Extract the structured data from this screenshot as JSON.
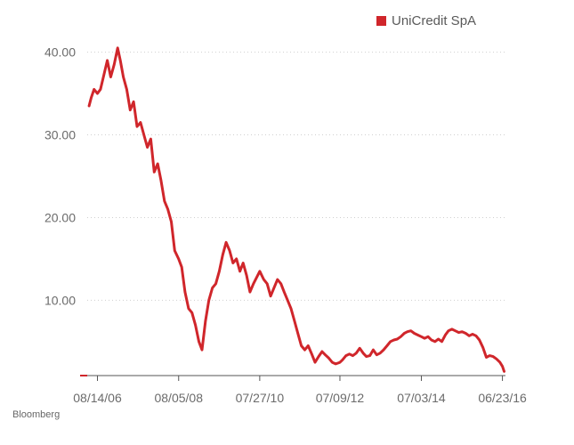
{
  "source": "Bloomberg",
  "colors": {
    "series": "#d0262b",
    "grid": "#cfcfcf",
    "axis": "#555555"
  },
  "chart_data": {
    "type": "line",
    "title": "",
    "xlabel": "",
    "ylabel": "",
    "legend_position": "top-right",
    "grid": true,
    "ylim": [
      1,
      42
    ],
    "xlim": [
      "2006-05-15",
      "2016-07-20"
    ],
    "yticks": [
      {
        "value": 10,
        "label": "10.00"
      },
      {
        "value": 20,
        "label": "20.00"
      },
      {
        "value": 30,
        "label": "30.00"
      },
      {
        "value": 40,
        "label": "40.00"
      }
    ],
    "xticks": [
      {
        "value": "2006-08-14",
        "label": "08/14/06"
      },
      {
        "value": "2008-08-05",
        "label": "08/05/08"
      },
      {
        "value": "2010-07-27",
        "label": "07/27/10"
      },
      {
        "value": "2012-07-09",
        "label": "07/09/12"
      },
      {
        "value": "2014-07-03",
        "label": "07/03/14"
      },
      {
        "value": "2016-06-23",
        "label": "06/23/16"
      }
    ],
    "series": [
      {
        "name": "UniCredit SpA",
        "color": "#d0262b",
        "points": [
          [
            "2006-06-01",
            33.5
          ],
          [
            "2006-06-20",
            34.5
          ],
          [
            "2006-07-15",
            35.5
          ],
          [
            "2006-08-14",
            35.0
          ],
          [
            "2006-09-10",
            35.5
          ],
          [
            "2006-10-15",
            37.5
          ],
          [
            "2006-11-10",
            39.0
          ],
          [
            "2006-12-10",
            37.0
          ],
          [
            "2007-01-10",
            38.5
          ],
          [
            "2007-02-10",
            40.5
          ],
          [
            "2007-03-05",
            39.0
          ],
          [
            "2007-04-01",
            37.0
          ],
          [
            "2007-05-01",
            35.5
          ],
          [
            "2007-06-01",
            33.0
          ],
          [
            "2007-07-01",
            34.0
          ],
          [
            "2007-08-01",
            31.0
          ],
          [
            "2007-09-01",
            31.5
          ],
          [
            "2007-10-01",
            30.0
          ],
          [
            "2007-11-01",
            28.5
          ],
          [
            "2007-12-01",
            29.5
          ],
          [
            "2008-01-01",
            25.5
          ],
          [
            "2008-02-01",
            26.5
          ],
          [
            "2008-03-01",
            24.5
          ],
          [
            "2008-04-01",
            22.0
          ],
          [
            "2008-05-01",
            21.0
          ],
          [
            "2008-06-01",
            19.5
          ],
          [
            "2008-07-01",
            16.0
          ],
          [
            "2008-08-05",
            15.0
          ],
          [
            "2008-09-01",
            14.0
          ],
          [
            "2008-10-01",
            11.0
          ],
          [
            "2008-11-01",
            9.0
          ],
          [
            "2008-12-01",
            8.5
          ],
          [
            "2009-01-01",
            7.0
          ],
          [
            "2009-02-01",
            5.0
          ],
          [
            "2009-03-01",
            4.0
          ],
          [
            "2009-04-01",
            7.5
          ],
          [
            "2009-05-01",
            10.0
          ],
          [
            "2009-06-01",
            11.5
          ],
          [
            "2009-07-01",
            12.0
          ],
          [
            "2009-08-01",
            13.5
          ],
          [
            "2009-09-01",
            15.5
          ],
          [
            "2009-10-01",
            17.0
          ],
          [
            "2009-11-01",
            16.0
          ],
          [
            "2009-12-01",
            14.5
          ],
          [
            "2010-01-01",
            15.0
          ],
          [
            "2010-02-01",
            13.5
          ],
          [
            "2010-03-01",
            14.5
          ],
          [
            "2010-04-01",
            13.0
          ],
          [
            "2010-05-01",
            11.0
          ],
          [
            "2010-06-01",
            12.0
          ],
          [
            "2010-07-27",
            13.5
          ],
          [
            "2010-09-01",
            12.5
          ],
          [
            "2010-10-01",
            12.0
          ],
          [
            "2010-11-01",
            10.5
          ],
          [
            "2010-12-01",
            11.5
          ],
          [
            "2011-01-01",
            12.5
          ],
          [
            "2011-02-01",
            12.0
          ],
          [
            "2011-03-01",
            11.0
          ],
          [
            "2011-04-01",
            10.0
          ],
          [
            "2011-05-01",
            9.0
          ],
          [
            "2011-06-01",
            7.5
          ],
          [
            "2011-07-01",
            6.0
          ],
          [
            "2011-08-01",
            4.5
          ],
          [
            "2011-09-01",
            4.0
          ],
          [
            "2011-10-01",
            4.5
          ],
          [
            "2011-11-01",
            3.5
          ],
          [
            "2011-12-01",
            2.5
          ],
          [
            "2012-01-01",
            3.2
          ],
          [
            "2012-02-01",
            3.8
          ],
          [
            "2012-03-01",
            3.4
          ],
          [
            "2012-04-01",
            3.0
          ],
          [
            "2012-05-01",
            2.5
          ],
          [
            "2012-06-01",
            2.3
          ],
          [
            "2012-07-09",
            2.5
          ],
          [
            "2012-08-01",
            2.8
          ],
          [
            "2012-09-01",
            3.3
          ],
          [
            "2012-10-01",
            3.5
          ],
          [
            "2012-11-01",
            3.3
          ],
          [
            "2012-12-01",
            3.6
          ],
          [
            "2013-01-01",
            4.2
          ],
          [
            "2013-02-01",
            3.6
          ],
          [
            "2013-03-01",
            3.2
          ],
          [
            "2013-04-01",
            3.3
          ],
          [
            "2013-05-01",
            4.0
          ],
          [
            "2013-06-01",
            3.4
          ],
          [
            "2013-07-01",
            3.6
          ],
          [
            "2013-08-01",
            4.0
          ],
          [
            "2013-09-01",
            4.5
          ],
          [
            "2013-10-01",
            5.0
          ],
          [
            "2013-11-01",
            5.2
          ],
          [
            "2013-12-01",
            5.3
          ],
          [
            "2014-01-01",
            5.6
          ],
          [
            "2014-02-01",
            6.0
          ],
          [
            "2014-03-01",
            6.2
          ],
          [
            "2014-04-01",
            6.3
          ],
          [
            "2014-05-01",
            6.0
          ],
          [
            "2014-06-01",
            5.8
          ],
          [
            "2014-07-03",
            5.6
          ],
          [
            "2014-08-01",
            5.4
          ],
          [
            "2014-09-01",
            5.6
          ],
          [
            "2014-10-01",
            5.2
          ],
          [
            "2014-11-01",
            5.0
          ],
          [
            "2014-12-01",
            5.3
          ],
          [
            "2015-01-01",
            5.0
          ],
          [
            "2015-02-01",
            5.8
          ],
          [
            "2015-03-01",
            6.3
          ],
          [
            "2015-04-01",
            6.5
          ],
          [
            "2015-05-01",
            6.3
          ],
          [
            "2015-06-01",
            6.1
          ],
          [
            "2015-07-01",
            6.2
          ],
          [
            "2015-08-01",
            6.0
          ],
          [
            "2015-09-01",
            5.7
          ],
          [
            "2015-10-01",
            5.9
          ],
          [
            "2015-11-01",
            5.7
          ],
          [
            "2015-12-01",
            5.2
          ],
          [
            "2016-01-01",
            4.3
          ],
          [
            "2016-02-01",
            3.1
          ],
          [
            "2016-03-01",
            3.3
          ],
          [
            "2016-04-01",
            3.2
          ],
          [
            "2016-05-01",
            2.9
          ],
          [
            "2016-06-01",
            2.5
          ],
          [
            "2016-06-23",
            2.0
          ],
          [
            "2016-07-08",
            1.4
          ]
        ]
      }
    ]
  }
}
